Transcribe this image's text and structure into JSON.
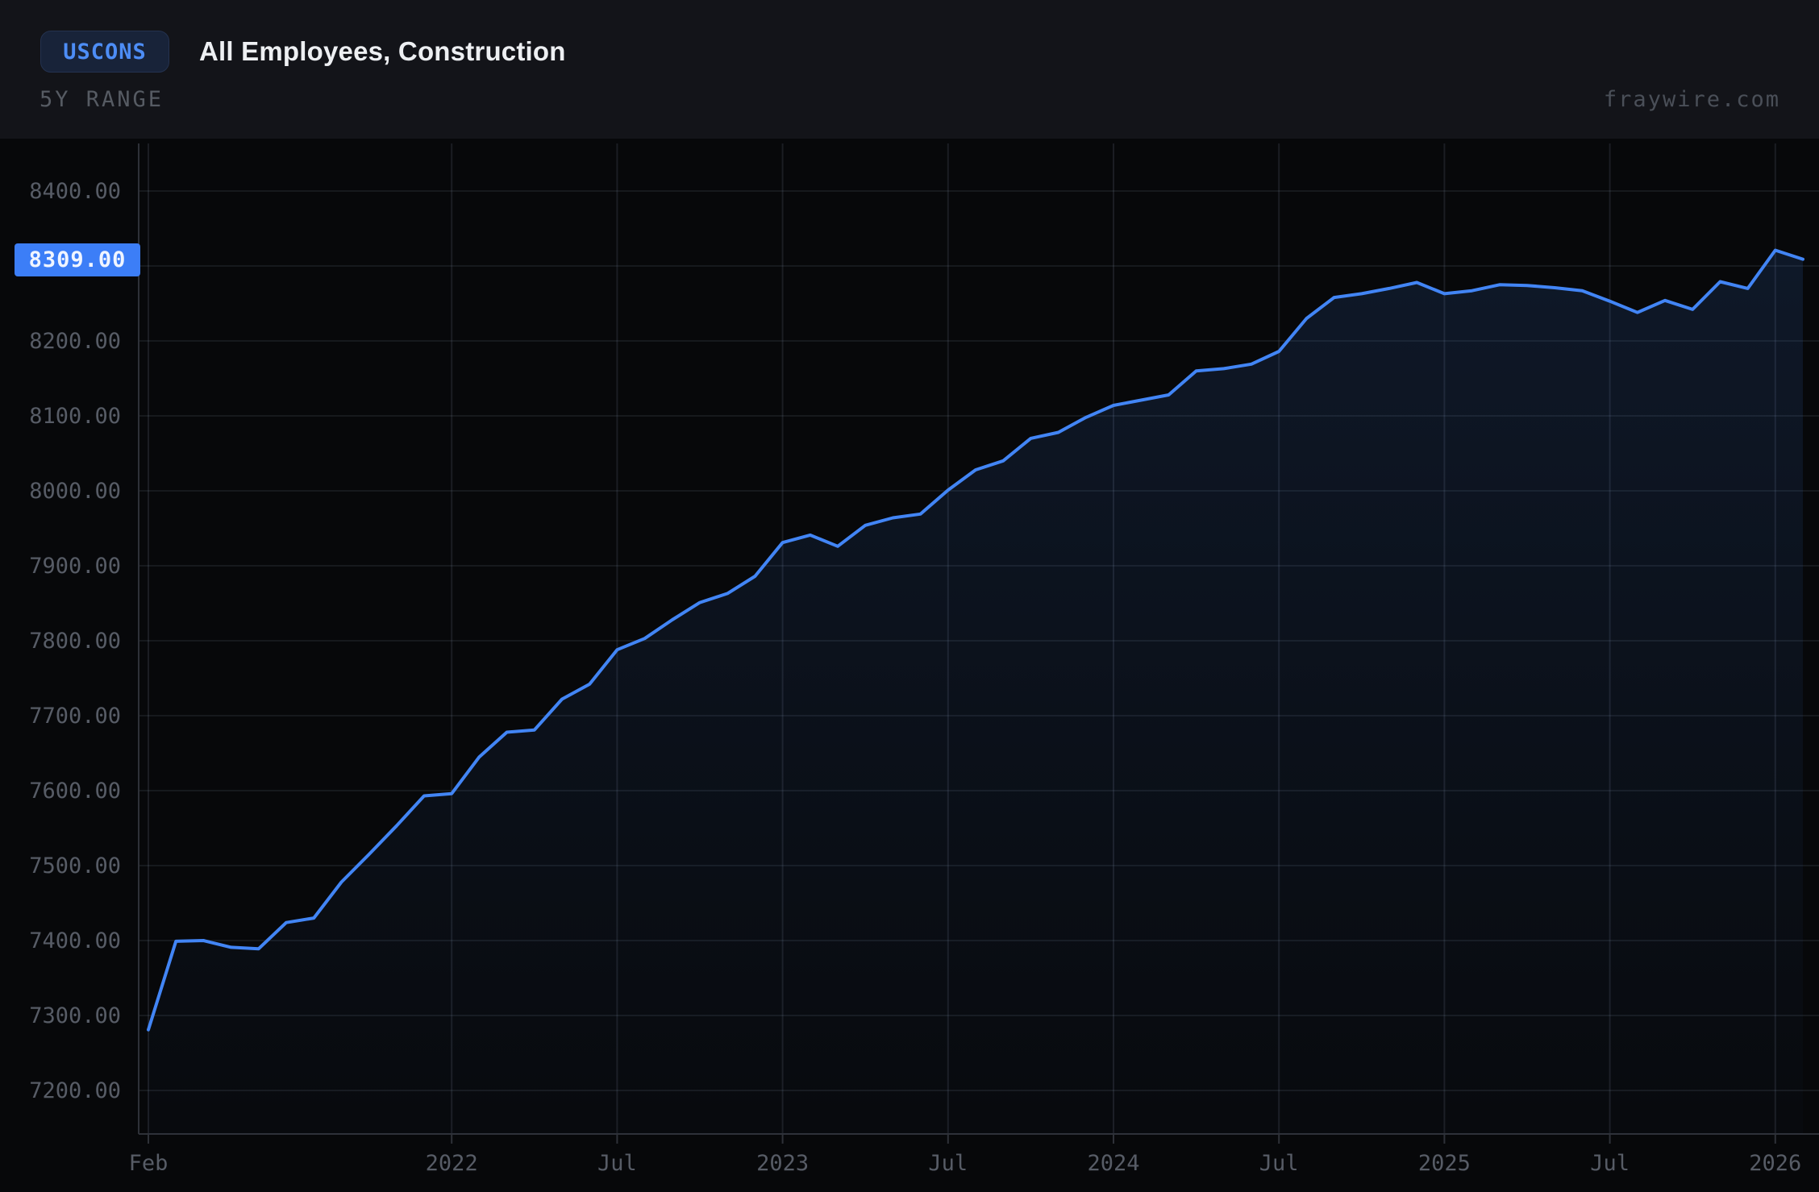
{
  "header": {
    "ticker": "USCONS",
    "title": "All Employees, Construction",
    "range_label": "5Y RANGE",
    "watermark": "fraywire.com"
  },
  "current_value": {
    "label": "8309.00",
    "value": 8309
  },
  "colors": {
    "accent_blue": "#4285f5",
    "badge_blue": "#3c7ef7",
    "ticker_text": "#4d8df6",
    "ticker_bg": "#182339",
    "header_bg": "#131419",
    "chart_bg": "#07080a",
    "grid": "rgba(150,165,190,0.11)",
    "axis": "#2e3138",
    "tick_text": "#575c66",
    "fill_top": "rgba(66,133,244,0.13)",
    "fill_bottom": "rgba(66,133,244,0.015)"
  },
  "chart_data": {
    "type": "area",
    "title": "All Employees, Construction",
    "legend": "none",
    "grid": "on",
    "x_start": "2021-02",
    "x_end": "2026-02",
    "frequency": "monthly",
    "ylim": [
      7142,
      8463
    ],
    "series": [
      {
        "name": "USCONS",
        "values": [
          7281,
          7399,
          7400,
          7391,
          7389,
          7424,
          7430,
          7478,
          7515,
          7553,
          7593,
          7596,
          7645,
          7678,
          7681,
          7722,
          7742,
          7788,
          7803,
          7828,
          7851,
          7863,
          7886,
          7931,
          7941,
          7926,
          7954,
          7964,
          7969,
          8001,
          8028,
          8040,
          8070,
          8078,
          8098,
          8114,
          8121,
          8128,
          8160,
          8163,
          8169,
          8186,
          8230,
          8258,
          8263,
          8270,
          8278,
          8263,
          8267,
          8275,
          8274,
          8271,
          8267,
          8253,
          8238,
          8254,
          8242,
          8279,
          8270,
          8321,
          8309
        ]
      }
    ],
    "x_ticks": [
      {
        "m": 0,
        "label": "Feb"
      },
      {
        "m": 11,
        "label": "2022"
      },
      {
        "m": 17,
        "label": "Jul"
      },
      {
        "m": 23,
        "label": "2023"
      },
      {
        "m": 29,
        "label": "Jul"
      },
      {
        "m": 35,
        "label": "2024"
      },
      {
        "m": 41,
        "label": "Jul"
      },
      {
        "m": 47,
        "label": "2025"
      },
      {
        "m": 53,
        "label": "Jul"
      },
      {
        "m": 59,
        "label": "2026"
      }
    ],
    "y_ticks": [
      {
        "v": 8400,
        "label": "8400.00"
      },
      {
        "v": 8300,
        "label": "8300.00"
      },
      {
        "v": 8200,
        "label": "8200.00"
      },
      {
        "v": 8100,
        "label": "8100.00"
      },
      {
        "v": 8000,
        "label": "8000.00"
      },
      {
        "v": 7900,
        "label": "7900.00"
      },
      {
        "v": 7800,
        "label": "7800.00"
      },
      {
        "v": 7700,
        "label": "7700.00"
      },
      {
        "v": 7600,
        "label": "7600.00"
      },
      {
        "v": 7500,
        "label": "7500.00"
      },
      {
        "v": 7400,
        "label": "7400.00"
      },
      {
        "v": 7300,
        "label": "7300.00"
      },
      {
        "v": 7200,
        "label": "7200.00"
      }
    ]
  }
}
